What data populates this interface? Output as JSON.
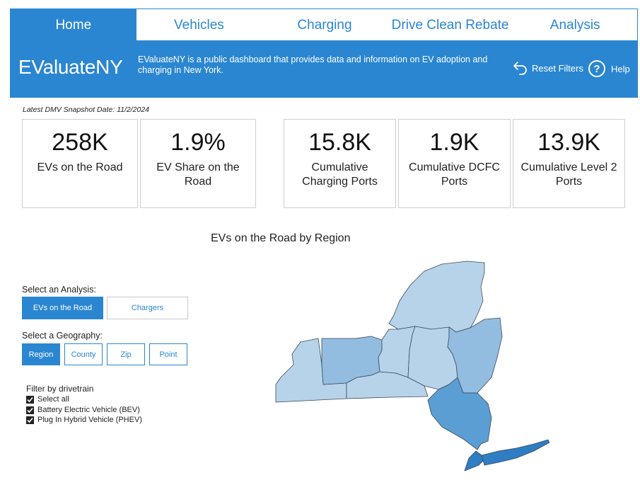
{
  "nav": {
    "tabs": [
      {
        "label": "Home",
        "active": true
      },
      {
        "label": "Vehicles",
        "active": false
      },
      {
        "label": "Charging",
        "active": false
      },
      {
        "label": "Drive Clean Rebate",
        "active": false
      },
      {
        "label": "Analysis",
        "active": false
      }
    ]
  },
  "banner": {
    "brand": "EValuateNY",
    "description": "EValuateNY is a public dashboard that provides data and information on EV adoption and charging in New York.",
    "reset_label": "Reset Filters",
    "help_label": "Help",
    "color": "#2a86d1"
  },
  "snapshot": "Latest DMV Snapshot Date: 11/2/2024",
  "kpis": [
    {
      "value": "258K",
      "label": "EVs on the Road"
    },
    {
      "value": "1.9%",
      "label": "EV Share on the Road"
    },
    {
      "value": "15.8K",
      "label": "Cumulative Charging Ports"
    },
    {
      "value": "1.9K",
      "label": "Cumulative DCFC Ports"
    },
    {
      "value": "13.9K",
      "label": "Cumulative Level 2 Ports"
    }
  ],
  "map": {
    "title": "EVs on the Road by Region",
    "colors": {
      "light": "#b7d3ea",
      "mid": "#93bde0",
      "dark": "#5a9ed4",
      "darkest": "#2f7dc2",
      "stroke": "#3a4a5a"
    }
  },
  "analysis": {
    "label": "Select an Analysis:",
    "options": [
      {
        "label": "EVs on the Road",
        "active": true
      },
      {
        "label": "Chargers",
        "active": false
      }
    ]
  },
  "geography": {
    "label": "Select a Geography:",
    "options": [
      {
        "label": "Region",
        "active": true
      },
      {
        "label": "County",
        "active": false
      },
      {
        "label": "Zip",
        "active": false
      },
      {
        "label": "Point",
        "active": false
      }
    ]
  },
  "drivetrain": {
    "title": "Filter by drivetrain",
    "items": [
      {
        "label": "Select all",
        "checked": true
      },
      {
        "label": "Battery Electric Vehicle (BEV)",
        "checked": true
      },
      {
        "label": "Plug In Hybrid Vehicle (PHEV)",
        "checked": true
      }
    ]
  }
}
